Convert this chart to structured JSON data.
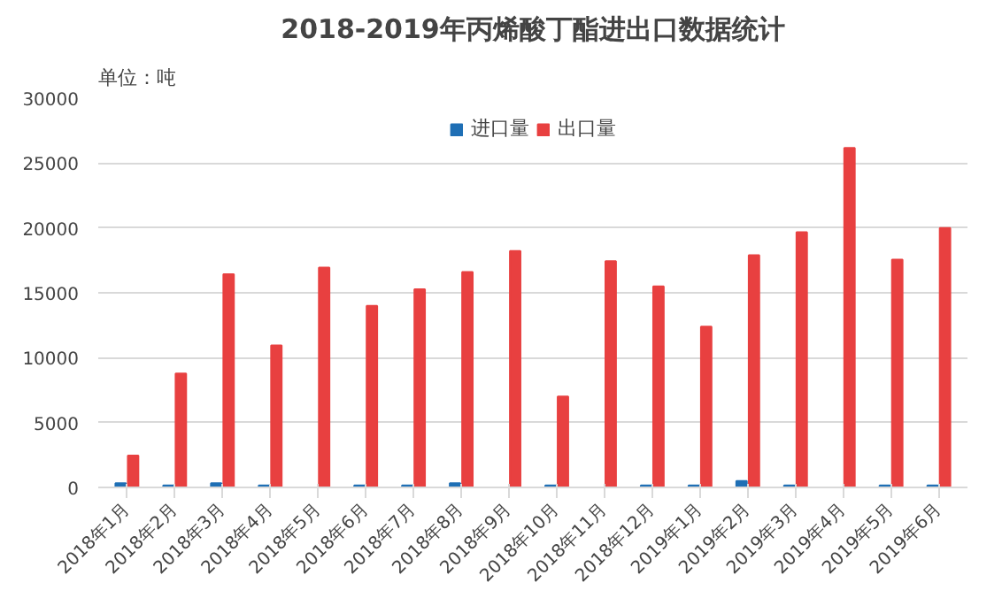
{
  "chart_data": {
    "type": "bar",
    "title": "2018-2019年丙烯酸丁酯进出口数据统计",
    "ylabel": "单位：吨",
    "categories": [
      "2018年1月",
      "2018年2月",
      "2018年3月",
      "2018年4月",
      "2018年5月",
      "2018年6月",
      "2018年7月",
      "2018年8月",
      "2018年9月",
      "2018年10月",
      "2018年11月",
      "2018年12月",
      "2019年1月",
      "2019年2月",
      "2019年3月",
      "2019年4月",
      "2019年5月",
      "2019年6月"
    ],
    "series": [
      {
        "name": "进口量",
        "color": "#1f6fb5",
        "values": [
          330,
          150,
          330,
          150,
          0,
          150,
          150,
          330,
          0,
          150,
          0,
          150,
          150,
          500,
          150,
          0,
          150,
          150
        ]
      },
      {
        "name": "出口量",
        "color": "#e84040",
        "values": [
          2450,
          8780,
          16440,
          10940,
          16940,
          14000,
          15280,
          16610,
          18220,
          7000,
          17440,
          15500,
          12390,
          17890,
          19670,
          26170,
          17560,
          20000
        ]
      }
    ],
    "ylim": [
      0,
      30000
    ],
    "yticks": [
      0,
      5000,
      10000,
      15000,
      20000,
      25000,
      30000
    ],
    "grid": "y",
    "legend": "top"
  }
}
